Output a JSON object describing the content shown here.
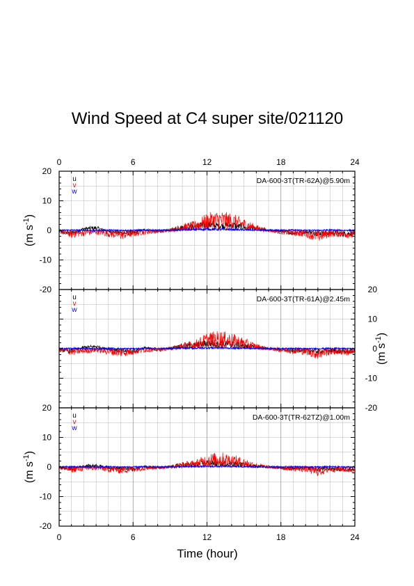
{
  "page": {
    "title": "Wind Speed at C4 super site/021120",
    "xlabel": "Time (hour)"
  },
  "colors": {
    "u": "#000000",
    "v": "#ff0000",
    "w": "#0000ff",
    "grid": "#999999"
  },
  "chart_data": [
    {
      "type": "line",
      "panel_label": "DA-600-3T(TR-62A)@5.90m",
      "ylabel": "(m s-1)",
      "x_ticks": [
        0,
        6,
        12,
        18,
        24
      ],
      "y_ticks": [
        20,
        10,
        0,
        -10,
        -20
      ],
      "xlim": [
        0,
        24
      ],
      "ylim": [
        -20,
        20
      ],
      "grid": true,
      "series": [
        {
          "name": "u",
          "x": [
            0,
            1,
            2,
            3,
            4,
            5,
            6,
            7,
            8,
            9,
            10,
            11,
            12,
            13,
            14,
            15,
            16,
            17,
            18,
            19,
            20,
            21,
            22,
            23,
            24
          ],
          "y": [
            -0.5,
            -1,
            0.5,
            0.8,
            -0.3,
            -0.8,
            -1,
            0.3,
            -0.5,
            0.2,
            1,
            1.2,
            2,
            1.5,
            1.8,
            1,
            0.5,
            0,
            -0.3,
            -0.8,
            -0.5,
            -1,
            -0.8,
            -1.2,
            -1
          ]
        },
        {
          "name": "v",
          "x": [
            0,
            1,
            2,
            3,
            4,
            5,
            6,
            7,
            8,
            9,
            10,
            11,
            12,
            13,
            14,
            15,
            16,
            17,
            18,
            19,
            20,
            21,
            22,
            23,
            24
          ],
          "y": [
            -0.3,
            -1.2,
            -0.8,
            -0.5,
            -1,
            -1.5,
            -1,
            -0.5,
            -0.3,
            0,
            1,
            1.5,
            3,
            3.5,
            3,
            2,
            0.8,
            0,
            -0.5,
            -0.8,
            -1,
            -2,
            -1,
            -1,
            -1.5
          ]
        },
        {
          "name": "w",
          "x": [
            0,
            1,
            2,
            3,
            4,
            5,
            6,
            7,
            8,
            9,
            10,
            11,
            12,
            13,
            14,
            15,
            16,
            17,
            18,
            19,
            20,
            21,
            22,
            23,
            24
          ],
          "y": [
            0,
            0.1,
            0,
            -0.1,
            0.1,
            0,
            0,
            0.1,
            0,
            0,
            0.2,
            0.3,
            0.4,
            0.3,
            0.3,
            0.2,
            0.1,
            0,
            0,
            0.1,
            0,
            0,
            0.1,
            0,
            0
          ]
        }
      ]
    },
    {
      "type": "line",
      "panel_label": "DA-600-3T(TR-61A)@2.45m",
      "ylabel": "(m s-1)",
      "x_ticks": [
        0,
        6,
        12,
        18,
        24
      ],
      "y_ticks": [
        20,
        10,
        0,
        -10,
        -20
      ],
      "xlim": [
        0,
        24
      ],
      "ylim": [
        -20,
        20
      ],
      "grid": true,
      "series": [
        {
          "name": "u",
          "x": [
            0,
            1,
            2,
            3,
            4,
            5,
            6,
            7,
            8,
            9,
            10,
            11,
            12,
            13,
            14,
            15,
            16,
            17,
            18,
            19,
            20,
            21,
            22,
            23,
            24
          ],
          "y": [
            -0.4,
            -0.8,
            0.4,
            0.7,
            -0.2,
            -0.7,
            -0.9,
            0.3,
            -0.4,
            0.2,
            0.9,
            1.1,
            1.8,
            1.4,
            1.6,
            0.9,
            0.4,
            0,
            -0.3,
            -0.7,
            -0.4,
            -0.9,
            -0.7,
            -1,
            -0.9
          ]
        },
        {
          "name": "v",
          "x": [
            0,
            1,
            2,
            3,
            4,
            5,
            6,
            7,
            8,
            9,
            10,
            11,
            12,
            13,
            14,
            15,
            16,
            17,
            18,
            19,
            20,
            21,
            22,
            23,
            24
          ],
          "y": [
            -0.3,
            -1,
            -0.7,
            -0.4,
            -0.9,
            -1.3,
            -0.9,
            -0.4,
            -0.3,
            0,
            0.9,
            1.3,
            2.8,
            3.2,
            2.7,
            1.8,
            0.7,
            0,
            -0.4,
            -0.7,
            -0.9,
            -1.8,
            -0.9,
            -0.9,
            -1.3
          ]
        },
        {
          "name": "w",
          "x": [
            0,
            1,
            2,
            3,
            4,
            5,
            6,
            7,
            8,
            9,
            10,
            11,
            12,
            13,
            14,
            15,
            16,
            17,
            18,
            19,
            20,
            21,
            22,
            23,
            24
          ],
          "y": [
            0,
            0.1,
            0,
            -0.1,
            0.1,
            0,
            0,
            0.1,
            0,
            0,
            0.2,
            0.2,
            0.3,
            0.3,
            0.2,
            0.2,
            0.1,
            0,
            0,
            0.1,
            0,
            0,
            0.1,
            0,
            0
          ]
        }
      ]
    },
    {
      "type": "line",
      "panel_label": "DA-600-3T(TR-62TZ)@1.00m",
      "ylabel": "(m s-1)",
      "x_ticks": [
        0,
        6,
        12,
        18,
        24
      ],
      "y_ticks": [
        20,
        10,
        0,
        -10,
        -20
      ],
      "xlim": [
        0,
        24
      ],
      "ylim": [
        -20,
        20
      ],
      "grid": true,
      "series": [
        {
          "name": "u",
          "x": [
            0,
            1,
            2,
            3,
            4,
            5,
            6,
            7,
            8,
            9,
            10,
            11,
            12,
            13,
            14,
            15,
            16,
            17,
            18,
            19,
            20,
            21,
            22,
            23,
            24
          ],
          "y": [
            -0.3,
            -0.6,
            0.3,
            0.5,
            -0.2,
            -0.5,
            -0.7,
            0.2,
            -0.3,
            0.1,
            0.7,
            0.9,
            1.4,
            1.1,
            1.2,
            0.7,
            0.3,
            0,
            -0.2,
            -0.5,
            -0.3,
            -0.7,
            -0.5,
            -0.8,
            -0.7
          ]
        },
        {
          "name": "v",
          "x": [
            0,
            1,
            2,
            3,
            4,
            5,
            6,
            7,
            8,
            9,
            10,
            11,
            12,
            13,
            14,
            15,
            16,
            17,
            18,
            19,
            20,
            21,
            22,
            23,
            24
          ],
          "y": [
            -0.2,
            -0.8,
            -0.5,
            -0.3,
            -0.7,
            -1,
            -0.7,
            -0.3,
            -0.2,
            0,
            0.7,
            1,
            2.2,
            2.6,
            2.2,
            1.4,
            0.5,
            0,
            -0.3,
            -0.5,
            -0.7,
            -1.5,
            -0.7,
            -0.7,
            -1
          ]
        },
        {
          "name": "w",
          "x": [
            0,
            1,
            2,
            3,
            4,
            5,
            6,
            7,
            8,
            9,
            10,
            11,
            12,
            13,
            14,
            15,
            16,
            17,
            18,
            19,
            20,
            21,
            22,
            23,
            24
          ],
          "y": [
            0,
            0.1,
            0,
            -0.1,
            0.1,
            0,
            0,
            0.1,
            0,
            0,
            0.1,
            0.2,
            0.2,
            0.2,
            0.2,
            0.1,
            0.1,
            0,
            0,
            0.1,
            0,
            0,
            0.1,
            0,
            0
          ]
        }
      ]
    }
  ]
}
